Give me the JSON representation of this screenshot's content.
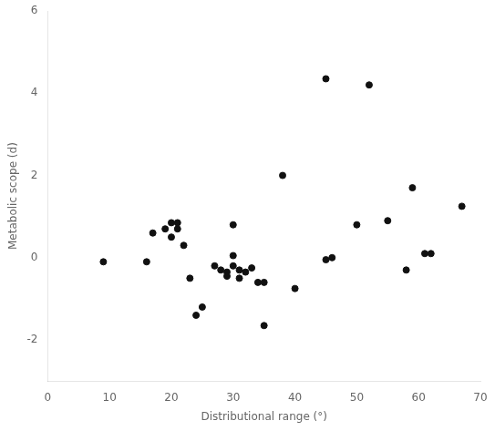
{
  "chart_data": {
    "type": "scatter",
    "x": [
      9,
      16,
      17,
      19,
      20,
      20,
      21,
      21,
      22,
      23,
      24,
      25,
      27,
      28,
      29,
      29,
      30,
      30,
      30,
      31,
      31,
      32,
      33,
      34,
      35,
      35,
      38,
      40,
      45,
      45,
      46,
      50,
      52,
      55,
      58,
      59,
      61,
      62,
      67
    ],
    "values": [
      -0.1,
      -0.1,
      0.6,
      0.7,
      0.5,
      0.85,
      0.85,
      0.7,
      0.3,
      -0.5,
      -1.4,
      -1.2,
      -0.2,
      -0.3,
      -0.35,
      -0.45,
      0.05,
      -0.2,
      0.8,
      -0.3,
      -0.5,
      -0.35,
      -0.25,
      -0.6,
      -0.6,
      -1.65,
      2.0,
      -0.75,
      4.35,
      -0.05,
      0.0,
      0.8,
      4.2,
      0.9,
      -0.3,
      1.7,
      0.1,
      0.1,
      1.25
    ],
    "color": "#111111",
    "xlim": [
      0,
      70
    ],
    "ylim": [
      -3,
      6
    ],
    "xticks": [
      0,
      10,
      20,
      30,
      40,
      50,
      60,
      70
    ],
    "yticks": [
      -2,
      0,
      2,
      4,
      6
    ],
    "xlabel": "Distributional range (°)",
    "ylabel": "Metabolic scope (d)",
    "grid": false
  }
}
